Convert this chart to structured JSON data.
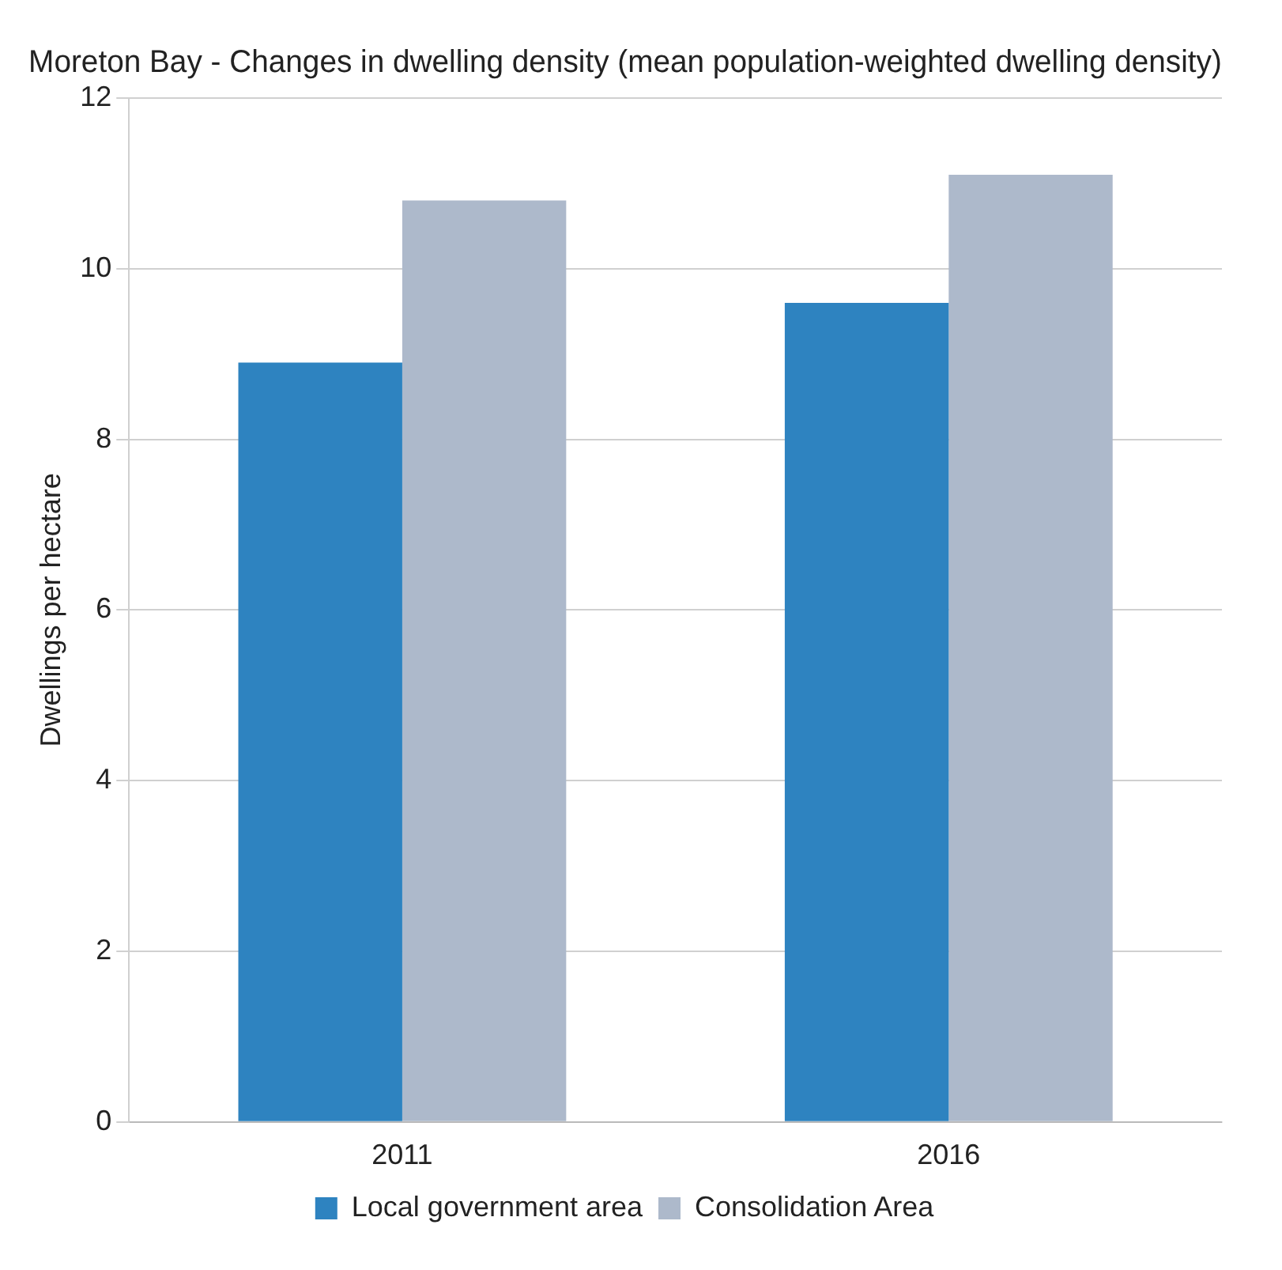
{
  "chart_data": {
    "type": "bar",
    "title": "Moreton Bay - Changes in dwelling density (mean population-weighted dwelling density)",
    "ylabel": "Dwellings per hectare",
    "categories": [
      "2011",
      "2016"
    ],
    "series": [
      {
        "name": "Local government area",
        "color": "#2e83c0",
        "values": [
          8.9,
          9.6
        ]
      },
      {
        "name": "Consolidation Area",
        "color": "#adb9cb",
        "values": [
          10.8,
          11.1
        ]
      }
    ],
    "ylim": [
      0,
      12
    ],
    "yticks": [
      0,
      2,
      4,
      6,
      8,
      10,
      12
    ],
    "grid": "y",
    "legend": "bottom"
  }
}
